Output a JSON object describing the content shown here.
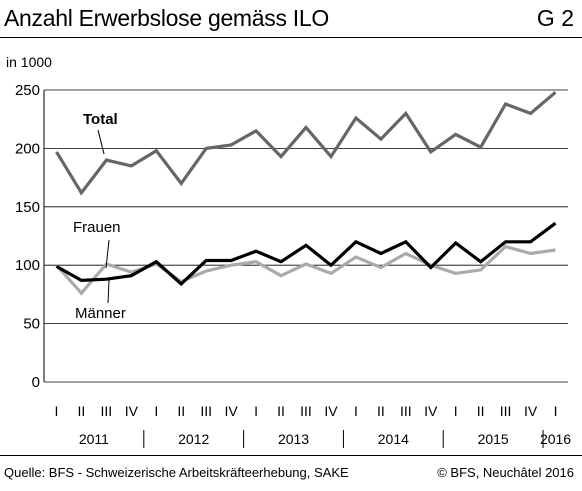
{
  "header": {
    "title": "Anzahl Erwerbslose gemäss ILO",
    "code": "G 2"
  },
  "footer": {
    "source": "Quelle: BFS - Schweizerische Arbeitskräfteerhebung, SAKE",
    "copyright": "© BFS, Neuchâtel 2016"
  },
  "chart_data": {
    "type": "line",
    "ylabel": "in 1000",
    "ylim": [
      0,
      250
    ],
    "yticks": [
      0,
      50,
      100,
      150,
      200,
      250
    ],
    "grid": true,
    "x": [
      "I",
      "II",
      "III",
      "IV",
      "I",
      "II",
      "III",
      "IV",
      "I",
      "II",
      "III",
      "IV",
      "I",
      "II",
      "III",
      "IV",
      "I",
      "II",
      "III",
      "IV",
      "I"
    ],
    "years": [
      {
        "label": "2011",
        "quarters": [
          0,
          3
        ]
      },
      {
        "label": "2012",
        "quarters": [
          4,
          7
        ]
      },
      {
        "label": "2013",
        "quarters": [
          8,
          11
        ]
      },
      {
        "label": "2014",
        "quarters": [
          12,
          15
        ]
      },
      {
        "label": "2015",
        "quarters": [
          16,
          19
        ]
      },
      {
        "label": "2016",
        "quarters": [
          20,
          20
        ]
      }
    ],
    "series": [
      {
        "name": "Total",
        "color": "#666666",
        "values": [
          197,
          162,
          190,
          185,
          198,
          170,
          200,
          203,
          215,
          193,
          218,
          193,
          226,
          208,
          230,
          197,
          212,
          201,
          238,
          230,
          248
        ]
      },
      {
        "name": "Frauen",
        "color": "#aaaaaa",
        "values": [
          100,
          76,
          101,
          94,
          101,
          86,
          95,
          100,
          103,
          91,
          101,
          93,
          107,
          98,
          110,
          100,
          93,
          96,
          116,
          110,
          113
        ]
      },
      {
        "name": "Männer",
        "color": "#000000",
        "values": [
          99,
          87,
          88,
          91,
          103,
          84,
          104,
          104,
          112,
          103,
          117,
          100,
          120,
          110,
          120,
          98,
          119,
          103,
          120,
          120,
          136
        ]
      }
    ]
  }
}
